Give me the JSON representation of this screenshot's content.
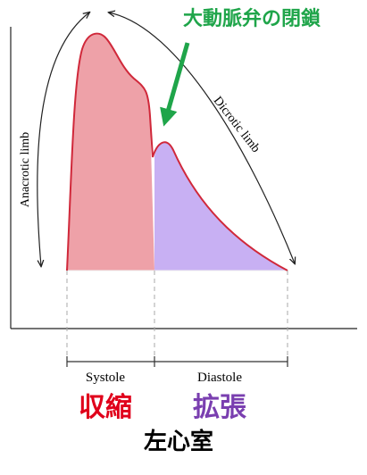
{
  "title": "大動脈弁の閉鎖",
  "limbs": {
    "anacrotic": "Anacrotic limb",
    "dicrotic": "Dicrotic limb"
  },
  "phases": {
    "systole": "Systole",
    "diastole": "Diastole",
    "systole_jp": "収縮",
    "diastole_jp": "拡張"
  },
  "footer": "左心室"
}
